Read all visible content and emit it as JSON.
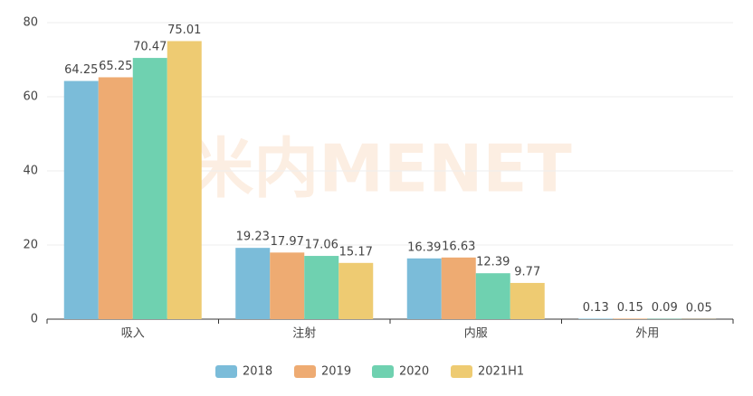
{
  "chart_data": {
    "type": "bar",
    "watermark": "米内MENET",
    "categories": [
      "吸入",
      "注射",
      "内服",
      "外用"
    ],
    "series": [
      {
        "name": "2018",
        "color": "#7bbcd9",
        "values": [
          64.25,
          19.23,
          16.39,
          0.13
        ]
      },
      {
        "name": "2019",
        "color": "#eeab72",
        "values": [
          65.25,
          17.97,
          16.63,
          0.15
        ]
      },
      {
        "name": "2020",
        "color": "#6fd1b0",
        "values": [
          70.47,
          17.06,
          12.39,
          0.09
        ]
      },
      {
        "name": "2021H1",
        "color": "#eecb72",
        "values": [
          75.01,
          15.17,
          9.77,
          0.05
        ]
      }
    ],
    "ylim": [
      0,
      80
    ],
    "yticks": [
      0,
      20,
      40,
      60,
      80
    ],
    "grid": true,
    "legend": "bottom"
  }
}
